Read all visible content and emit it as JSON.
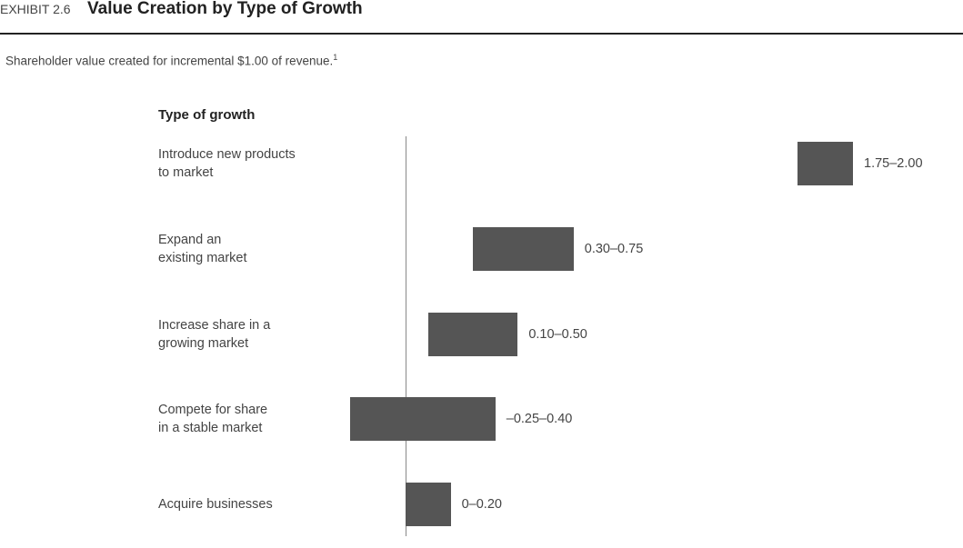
{
  "chart_data": {
    "type": "range",
    "exhibit": "EXHIBIT 2.6",
    "title": "Value Creation by Type of Growth",
    "subtitle": "Shareholder value created for incremental $1.00 of revenue.",
    "footnote_marker": "1",
    "y_label": "Type of growth",
    "categories": [
      "Introduce new products\nto market",
      "Expand an\nexisting market",
      "Increase share in a\ngrowing market",
      "Compete for share\nin a stable market",
      "Acquire businesses"
    ],
    "low": [
      1.75,
      0.3,
      0.1,
      -0.25,
      0
    ],
    "high": [
      2.0,
      0.75,
      0.5,
      0.4,
      0.2
    ],
    "value_labels": [
      "1.75–2.00",
      "0.30–0.75",
      "0.10–0.50",
      "–0.25–0.40",
      "0–0.20"
    ],
    "color": "#555555",
    "xlim": [
      -0.25,
      2.0
    ]
  }
}
